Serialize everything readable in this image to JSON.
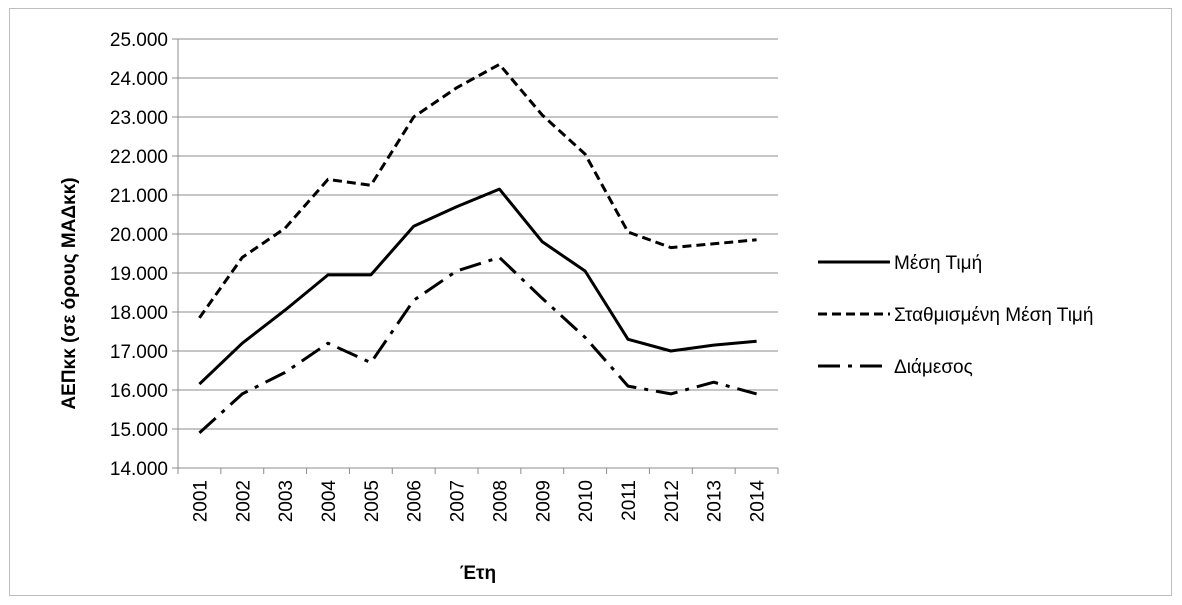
{
  "chart_data": {
    "type": "line",
    "title": "",
    "xlabel": "Έτη",
    "ylabel": "ΑΕΠκκ (σε όρους ΜΑΔκκ)",
    "x": [
      "2001",
      "2002",
      "2003",
      "2004",
      "2005",
      "2006",
      "2007",
      "2008",
      "2009",
      "2010",
      "2011",
      "2012",
      "2013",
      "2014"
    ],
    "ylim": [
      14000,
      25000
    ],
    "yticks": [
      "14.000",
      "15.000",
      "16.000",
      "17.000",
      "18.000",
      "19.000",
      "20.000",
      "21.000",
      "22.000",
      "23.000",
      "24.000",
      "25.000"
    ],
    "grid": "horizontal",
    "legend_position": "right",
    "series": [
      {
        "name": "Μέση Τιμή",
        "style": "solid",
        "color": "#000000",
        "values": [
          16150,
          17200,
          18050,
          18950,
          18950,
          20200,
          20700,
          21150,
          19800,
          19050,
          17300,
          17000,
          17150,
          17250
        ]
      },
      {
        "name": "Σταθμισμένη Μέση Τιμή",
        "style": "dashed",
        "color": "#000000",
        "values": [
          17850,
          19400,
          20150,
          21400,
          21250,
          23000,
          23750,
          24350,
          23050,
          22050,
          20050,
          19650,
          19750,
          19850
        ]
      },
      {
        "name": "Διάμεσος",
        "style": "dash-dot",
        "color": "#000000",
        "values": [
          14900,
          15900,
          16450,
          17200,
          16700,
          18300,
          19050,
          19400,
          18350,
          17350,
          16100,
          15900,
          16200,
          15900
        ]
      }
    ]
  }
}
